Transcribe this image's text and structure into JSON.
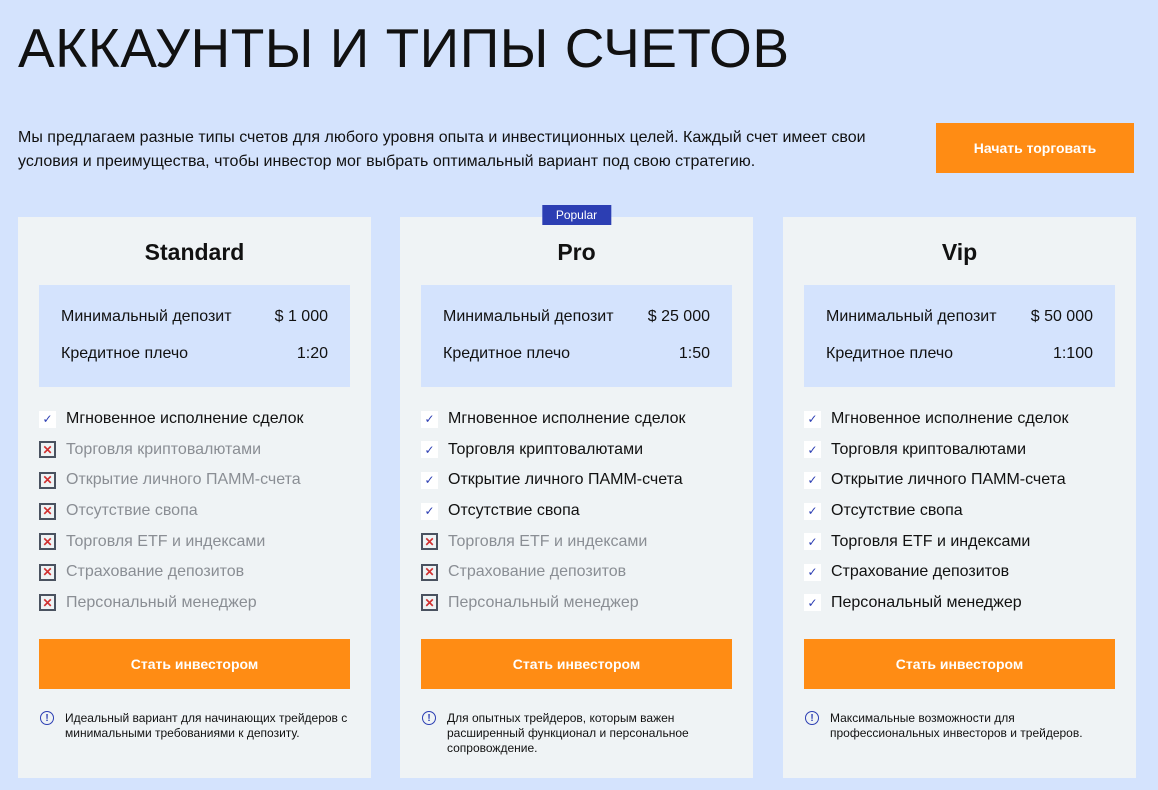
{
  "title": "АККАУНТЫ И ТИПЫ СЧЕТОВ",
  "intro": "Мы предлагаем разные типы счетов для любого уровня опыта и инвестиционных целей. Каждый счет имеет свои условия и преимущества, чтобы инвестор мог выбрать оптимальный вариант под свою стратегию.",
  "cta": "Начать торговать",
  "labels": {
    "deposit": "Минимальный депозит",
    "leverage": "Кредитное плечо",
    "button": "Стать инвестором"
  },
  "features": [
    "Мгновенное исполнение сделок",
    "Торговля криптовалютами",
    "Открытие личного ПАММ-счета",
    "Отсутствие свопа",
    "Торговля ETF и индексами",
    "Страхование депозитов",
    "Персональный менеджер"
  ],
  "cards": [
    {
      "name": "Standard",
      "badge": "",
      "deposit": "$ 1 000",
      "leverage": "1:20",
      "included": [
        true,
        false,
        false,
        false,
        false,
        false,
        false
      ],
      "note": "Идеальный вариант для начинающих трейдеров с минимальными требованиями к депозиту."
    },
    {
      "name": "Pro",
      "badge": "Popular",
      "deposit": "$ 25 000",
      "leverage": "1:50",
      "included": [
        true,
        true,
        true,
        true,
        false,
        false,
        false
      ],
      "note": "Для опытных трейдеров, которым важен расширенный функционал и персональное сопровождение."
    },
    {
      "name": "Vip",
      "badge": "",
      "deposit": "$ 50 000",
      "leverage": "1:100",
      "included": [
        true,
        true,
        true,
        true,
        true,
        true,
        true
      ],
      "note": "Максимальные возможности для профессиональных инвесторов и трейдеров."
    }
  ],
  "colors": {
    "accent": "#ff8c14",
    "brand": "#2c3eb3",
    "background": "#d4e3fd"
  }
}
